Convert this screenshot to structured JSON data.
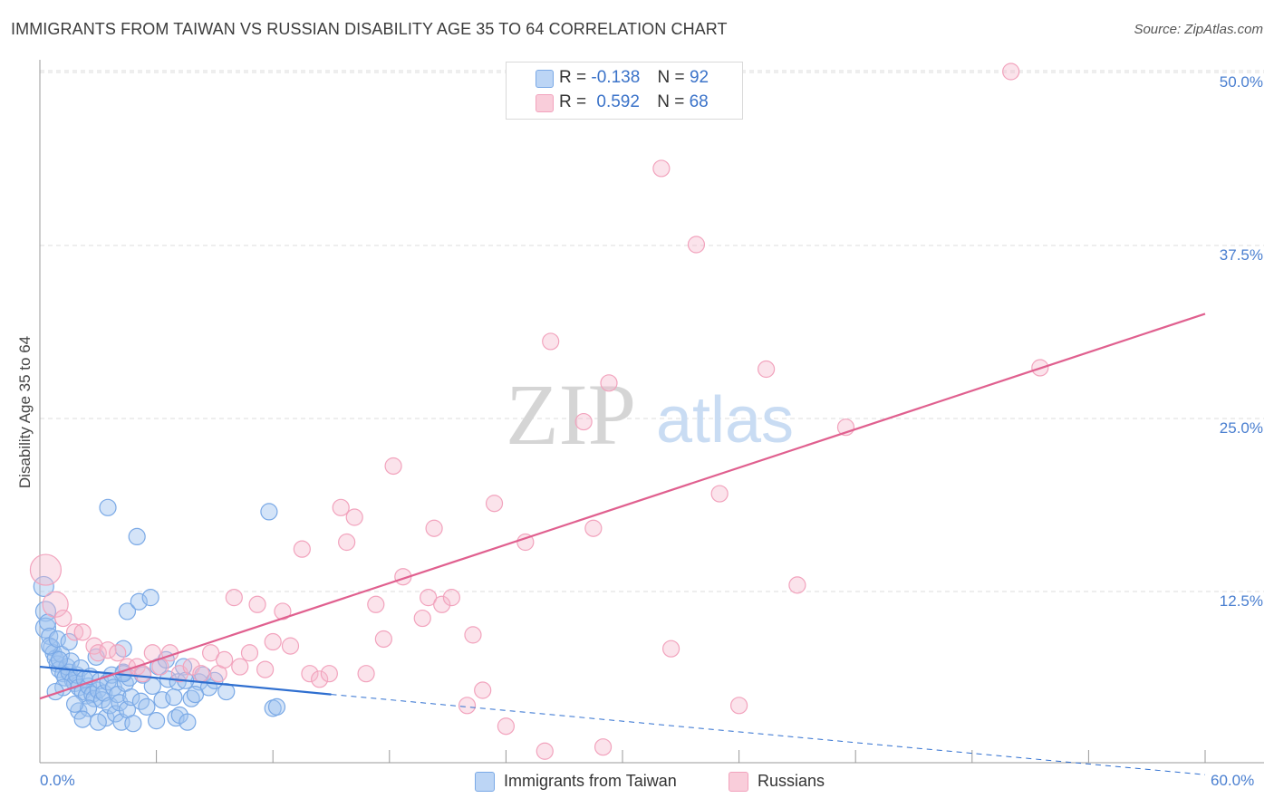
{
  "title": "IMMIGRANTS FROM TAIWAN VS RUSSIAN DISABILITY AGE 35 TO 64 CORRELATION CHART",
  "source": "Source: ZipAtlas.com",
  "watermark": {
    "zip": "ZIP",
    "atlas": "atlas"
  },
  "legend": {
    "rows": [
      {
        "r_label": "R =",
        "r_value": "-0.138",
        "n_label": "N =",
        "n_value": "92",
        "color": "#a9c8f2"
      },
      {
        "r_label": "R =",
        "r_value": "0.592",
        "n_label": "N =",
        "n_value": "68",
        "color": "#f6b8cc"
      }
    ]
  },
  "bottom_legend": {
    "taiwan": "Immigrants from Taiwan",
    "russians": "Russians"
  },
  "chart_data": {
    "type": "scatter",
    "title": "IMMIGRANTS FROM TAIWAN VS RUSSIAN DISABILITY AGE 35 TO 64 CORRELATION CHART",
    "xlabel": "",
    "ylabel": "Disability Age 35 to 64",
    "xlim": [
      0,
      60
    ],
    "ylim": [
      0,
      50
    ],
    "x_tick_labels": [
      "0.0%",
      "60.0%"
    ],
    "y_ticks": [
      12.5,
      25.0,
      37.5,
      50.0
    ],
    "y_tick_labels": [
      "12.5%",
      "25.0%",
      "37.5%",
      "50.0%"
    ],
    "grid": true,
    "series": [
      {
        "name": "Immigrants from Taiwan",
        "color": "#7aa9e6",
        "line_color": "#2f6fd0",
        "trend": {
          "x": [
            0,
            15
          ],
          "y": [
            7.0,
            5.0
          ],
          "dashed_extension_to": [
            60,
            -0.8
          ]
        },
        "points": [
          [
            0.2,
            12.8
          ],
          [
            0.3,
            11.0
          ],
          [
            0.3,
            9.8
          ],
          [
            0.4,
            10.2
          ],
          [
            0.5,
            9.2
          ],
          [
            0.6,
            8.4
          ],
          [
            0.7,
            8.0
          ],
          [
            0.8,
            7.6
          ],
          [
            0.9,
            7.2
          ],
          [
            1.0,
            6.8
          ],
          [
            1.1,
            7.9
          ],
          [
            1.2,
            6.5
          ],
          [
            1.3,
            6.2
          ],
          [
            1.4,
            7.0
          ],
          [
            1.5,
            6.6
          ],
          [
            1.6,
            7.4
          ],
          [
            1.7,
            6.0
          ],
          [
            1.8,
            5.8
          ],
          [
            1.9,
            6.4
          ],
          [
            2.0,
            5.5
          ],
          [
            2.1,
            6.9
          ],
          [
            2.2,
            5.2
          ],
          [
            2.3,
            6.1
          ],
          [
            2.4,
            4.9
          ],
          [
            2.5,
            5.6
          ],
          [
            2.6,
            6.3
          ],
          [
            2.7,
            5.0
          ],
          [
            2.8,
            4.7
          ],
          [
            2.9,
            7.7
          ],
          [
            3.0,
            5.3
          ],
          [
            3.1,
            6.0
          ],
          [
            3.2,
            4.6
          ],
          [
            3.3,
            5.1
          ],
          [
            3.4,
            3.3
          ],
          [
            3.5,
            5.9
          ],
          [
            3.6,
            4.2
          ],
          [
            3.7,
            6.4
          ],
          [
            3.8,
            5.5
          ],
          [
            3.9,
            3.6
          ],
          [
            4.0,
            5.0
          ],
          [
            4.1,
            4.4
          ],
          [
            4.2,
            3.0
          ],
          [
            4.3,
            6.6
          ],
          [
            4.4,
            5.8
          ],
          [
            4.5,
            3.9
          ],
          [
            4.6,
            6.2
          ],
          [
            4.7,
            4.8
          ],
          [
            4.8,
            2.9
          ],
          [
            3.5,
            18.5
          ],
          [
            4.3,
            8.3
          ],
          [
            4.5,
            11.0
          ],
          [
            4.3,
            6.5
          ],
          [
            5.0,
            16.4
          ],
          [
            5.1,
            11.7
          ],
          [
            5.2,
            4.5
          ],
          [
            5.3,
            6.4
          ],
          [
            5.5,
            4.1
          ],
          [
            5.7,
            12.0
          ],
          [
            5.8,
            5.6
          ],
          [
            6.0,
            3.1
          ],
          [
            6.1,
            7.0
          ],
          [
            6.3,
            4.6
          ],
          [
            6.6,
            6.1
          ],
          [
            6.9,
            4.8
          ],
          [
            7.0,
            3.3
          ],
          [
            7.1,
            5.9
          ],
          [
            7.2,
            3.5
          ],
          [
            7.4,
            7.0
          ],
          [
            7.6,
            3.0
          ],
          [
            7.8,
            4.7
          ],
          [
            8.2,
            5.9
          ],
          [
            8.4,
            6.4
          ],
          [
            8.7,
            5.5
          ],
          [
            9.6,
            5.2
          ],
          [
            11.8,
            18.2
          ],
          [
            12.0,
            4.0
          ],
          [
            12.2,
            4.1
          ],
          [
            2.0,
            3.8
          ],
          [
            1.2,
            5.5
          ],
          [
            0.8,
            5.2
          ],
          [
            0.5,
            8.5
          ],
          [
            1.0,
            7.5
          ],
          [
            2.5,
            4.0
          ],
          [
            3.0,
            3.0
          ],
          [
            6.5,
            7.5
          ],
          [
            7.5,
            6.0
          ],
          [
            8.0,
            5.0
          ],
          [
            9.0,
            6.0
          ],
          [
            1.8,
            4.3
          ],
          [
            2.2,
            3.2
          ],
          [
            0.9,
            9.0
          ],
          [
            1.5,
            8.8
          ]
        ]
      },
      {
        "name": "Russians",
        "color": "#f2a3bd",
        "line_color": "#e0608f",
        "trend": {
          "x": [
            0,
            60
          ],
          "y": [
            4.7,
            32.5
          ]
        },
        "points": [
          [
            0.3,
            14.0
          ],
          [
            0.8,
            11.5
          ],
          [
            1.2,
            10.5
          ],
          [
            1.8,
            9.5
          ],
          [
            2.2,
            9.5
          ],
          [
            2.8,
            8.5
          ],
          [
            3.0,
            8.0
          ],
          [
            3.5,
            8.2
          ],
          [
            4.0,
            8.0
          ],
          [
            4.5,
            7.0
          ],
          [
            5.0,
            7.0
          ],
          [
            5.3,
            6.5
          ],
          [
            5.8,
            8.0
          ],
          [
            6.2,
            7.0
          ],
          [
            6.7,
            8.0
          ],
          [
            7.2,
            6.5
          ],
          [
            7.8,
            7.0
          ],
          [
            8.3,
            6.5
          ],
          [
            8.8,
            8.0
          ],
          [
            9.2,
            6.5
          ],
          [
            9.5,
            7.5
          ],
          [
            10.0,
            12.0
          ],
          [
            10.3,
            7.0
          ],
          [
            10.8,
            8.0
          ],
          [
            11.2,
            11.5
          ],
          [
            11.6,
            6.8
          ],
          [
            12.0,
            8.8
          ],
          [
            12.5,
            11.0
          ],
          [
            12.9,
            8.5
          ],
          [
            13.5,
            15.5
          ],
          [
            13.9,
            6.5
          ],
          [
            14.4,
            6.1
          ],
          [
            14.9,
            6.5
          ],
          [
            15.5,
            18.5
          ],
          [
            15.8,
            16.0
          ],
          [
            16.2,
            17.8
          ],
          [
            16.8,
            6.5
          ],
          [
            17.3,
            11.5
          ],
          [
            17.7,
            9.0
          ],
          [
            18.2,
            21.5
          ],
          [
            18.7,
            13.5
          ],
          [
            19.7,
            10.5
          ],
          [
            20.0,
            12.0
          ],
          [
            20.3,
            17.0
          ],
          [
            20.7,
            11.5
          ],
          [
            21.2,
            12.0
          ],
          [
            22.0,
            4.2
          ],
          [
            22.3,
            9.3
          ],
          [
            22.8,
            5.3
          ],
          [
            23.4,
            18.8
          ],
          [
            24.0,
            2.7
          ],
          [
            25.0,
            16.0
          ],
          [
            26.0,
            0.9
          ],
          [
            26.3,
            30.5
          ],
          [
            28.0,
            24.7
          ],
          [
            28.5,
            17.0
          ],
          [
            29.0,
            1.2
          ],
          [
            29.3,
            27.5
          ],
          [
            32.0,
            43.0
          ],
          [
            32.5,
            8.3
          ],
          [
            33.8,
            37.5
          ],
          [
            35.0,
            19.5
          ],
          [
            36.0,
            4.2
          ],
          [
            37.4,
            28.5
          ],
          [
            39.0,
            12.9
          ],
          [
            41.5,
            24.3
          ],
          [
            50.0,
            50.0
          ],
          [
            51.5,
            28.6
          ]
        ]
      }
    ]
  }
}
